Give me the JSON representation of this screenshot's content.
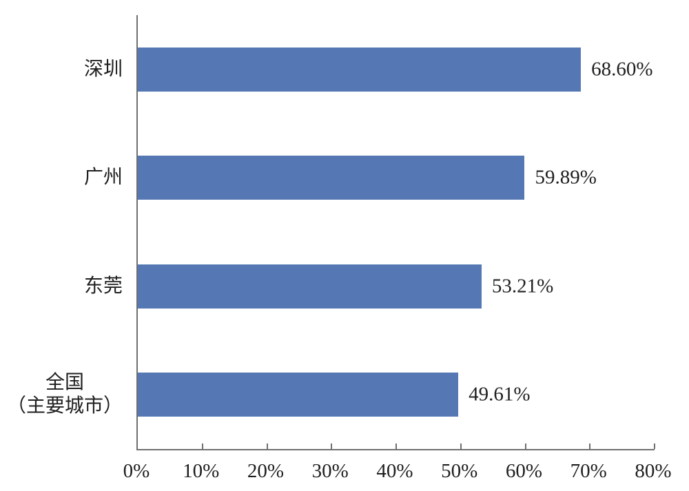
{
  "chart_data": {
    "type": "bar",
    "orientation": "horizontal",
    "title": "",
    "categories": [
      {
        "lines": [
          "深圳"
        ]
      },
      {
        "lines": [
          "广州"
        ]
      },
      {
        "lines": [
          "东莞"
        ]
      },
      {
        "lines": [
          "全国",
          "（主要城市）"
        ]
      }
    ],
    "values": [
      68.6,
      59.89,
      53.21,
      49.61
    ],
    "value_labels": [
      "68.60%",
      "59.89%",
      "53.21%",
      "49.61%"
    ],
    "xlim": [
      0,
      80
    ],
    "x_tick_step": 10,
    "x_tick_labels": [
      "0%",
      "10%",
      "20%",
      "30%",
      "40%",
      "50%",
      "60%",
      "70%",
      "80%"
    ],
    "grid": false,
    "legend": "none",
    "colors": {
      "bar": "#5578b4",
      "axis": "#6e6e6e",
      "text": "#1f1f1f",
      "background": "#ffffff"
    }
  }
}
